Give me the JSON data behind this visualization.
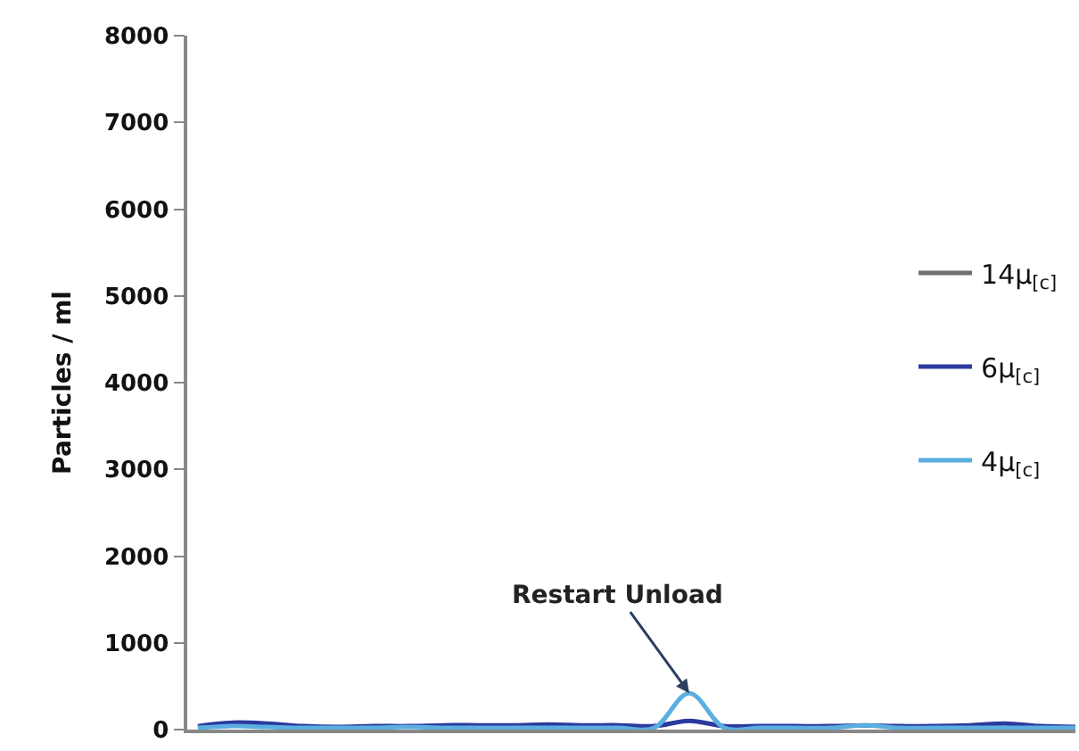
{
  "chart_data": {
    "type": "line",
    "ylabel": "Particles / ml",
    "ylim": [
      0,
      8000
    ],
    "yticks": [
      0,
      1000,
      2000,
      3000,
      4000,
      5000,
      6000,
      7000,
      8000
    ],
    "legend": "right",
    "marker": "none",
    "line_style": "solid",
    "categories": [
      null,
      null,
      null,
      null,
      null,
      null,
      null,
      null,
      null,
      null,
      null,
      null,
      null,
      null,
      null,
      null,
      null,
      null,
      null,
      null,
      null,
      null,
      null,
      null,
      null,
      null
    ],
    "series": [
      {
        "name": "4μ$_{[c]}$",
        "color": "#5aaee0",
        "values": [
          20,
          40,
          30,
          20,
          20,
          20,
          30,
          20,
          20,
          20,
          20,
          20,
          20,
          20,
          420,
          20,
          20,
          20,
          20,
          50,
          20,
          20,
          20,
          20,
          20,
          20
        ]
      },
      {
        "name": "6μ$_{[c]}$",
        "color": "#2b3a9e",
        "values": [
          40,
          80,
          70,
          40,
          30,
          40,
          40,
          50,
          50,
          50,
          60,
          50,
          50,
          40,
          100,
          40,
          40,
          40,
          40,
          50,
          40,
          40,
          50,
          70,
          40,
          30
        ]
      },
      {
        "name": "14μ$_{[c]}$",
        "color": "#707070",
        "values": [
          null,
          null,
          null,
          null,
          null,
          null,
          null,
          null,
          null,
          null,
          null,
          null,
          null,
          null,
          null,
          null,
          null,
          null,
          null,
          null,
          null,
          null,
          null,
          null,
          null,
          null
        ]
      }
    ],
    "annotations": [
      "Restart Unload"
    ]
  }
}
